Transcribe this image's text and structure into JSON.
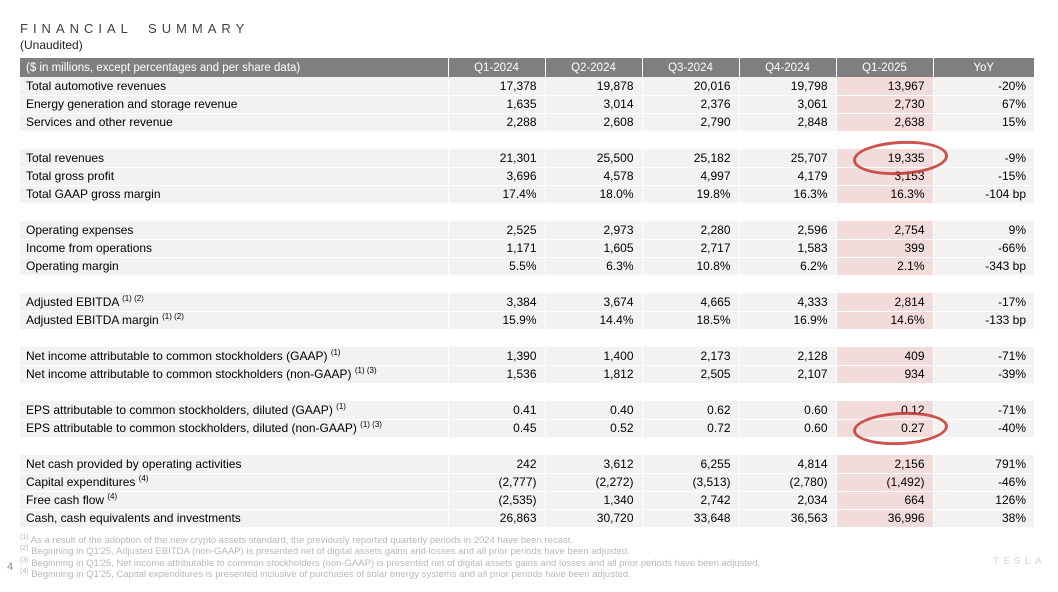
{
  "slide": {
    "title": "FINANCIAL SUMMARY",
    "subtitle": "(Unaudited)",
    "page_number": "4",
    "watermark": "TESLA"
  },
  "colors": {
    "header_gray": "#7f7f7f",
    "row_background": "#f2f2f2",
    "q1_2025_highlight_pink": "#f2dcdb",
    "annotation_red": "#c63b35",
    "footnote_gray": "#b9b9b9"
  },
  "table": {
    "header": {
      "label": "($ in millions, except percentages and per share data)",
      "columns": [
        "Q1-2024",
        "Q2-2024",
        "Q3-2024",
        "Q4-2024",
        "Q1-2025",
        "YoY"
      ]
    },
    "highlighted_column": "Q1-2025",
    "sections": [
      {
        "rows": [
          {
            "label": "Total automotive revenues",
            "sup": "",
            "values": [
              "17,378",
              "19,878",
              "20,016",
              "19,798",
              "13,967",
              "-20%"
            ]
          },
          {
            "label": "Energy generation and storage revenue",
            "sup": "",
            "values": [
              "1,635",
              "3,014",
              "2,376",
              "3,061",
              "2,730",
              "67%"
            ]
          },
          {
            "label": "Services and other revenue",
            "sup": "",
            "values": [
              "2,288",
              "2,608",
              "2,790",
              "2,848",
              "2,638",
              "15%"
            ]
          }
        ]
      },
      {
        "rows": [
          {
            "label": "Total revenues",
            "sup": "",
            "values": [
              "21,301",
              "25,500",
              "25,182",
              "25,707",
              "19,335",
              "-9%"
            ],
            "circled": 4
          },
          {
            "label": "Total gross profit",
            "sup": "",
            "values": [
              "3,696",
              "4,578",
              "4,997",
              "4,179",
              "3,153",
              "-15%"
            ]
          },
          {
            "label": "Total GAAP gross margin",
            "sup": "",
            "values": [
              "17.4%",
              "18.0%",
              "19.8%",
              "16.3%",
              "16.3%",
              "-104 bp"
            ]
          }
        ]
      },
      {
        "rows": [
          {
            "label": "Operating expenses",
            "sup": "",
            "values": [
              "2,525",
              "2,973",
              "2,280",
              "2,596",
              "2,754",
              "9%"
            ]
          },
          {
            "label": "Income from operations",
            "sup": "",
            "values": [
              "1,171",
              "1,605",
              "2,717",
              "1,583",
              "399",
              "-66%"
            ]
          },
          {
            "label": "Operating margin",
            "sup": "",
            "values": [
              "5.5%",
              "6.3%",
              "10.8%",
              "6.2%",
              "2.1%",
              "-343 bp"
            ]
          }
        ]
      },
      {
        "rows": [
          {
            "label": "Adjusted EBITDA",
            "sup": "(1) (2)",
            "values": [
              "3,384",
              "3,674",
              "4,665",
              "4,333",
              "2,814",
              "-17%"
            ]
          },
          {
            "label": "Adjusted EBITDA margin",
            "sup": "(1) (2)",
            "values": [
              "15.9%",
              "14.4%",
              "18.5%",
              "16.9%",
              "14.6%",
              "-133 bp"
            ]
          }
        ]
      },
      {
        "rows": [
          {
            "label": "Net income attributable to common stockholders (GAAP)",
            "sup": "(1)",
            "values": [
              "1,390",
              "1,400",
              "2,173",
              "2,128",
              "409",
              "-71%"
            ]
          },
          {
            "label": "Net income attributable to common stockholders (non-GAAP)",
            "sup": "(1) (3)",
            "values": [
              "1,536",
              "1,812",
              "2,505",
              "2,107",
              "934",
              "-39%"
            ]
          }
        ]
      },
      {
        "rows": [
          {
            "label": "EPS attributable to common stockholders, diluted (GAAP)",
            "sup": "(1)",
            "values": [
              "0.41",
              "0.40",
              "0.62",
              "0.60",
              "0.12",
              "-71%"
            ]
          },
          {
            "label": "EPS attributable to common stockholders, diluted (non-GAAP)",
            "sup": "(1) (3)",
            "values": [
              "0.45",
              "0.52",
              "0.72",
              "0.60",
              "0.27",
              "-40%"
            ],
            "circled": 4
          }
        ]
      },
      {
        "rows": [
          {
            "label": "Net cash provided by operating activities",
            "sup": "",
            "values": [
              "242",
              "3,612",
              "6,255",
              "4,814",
              "2,156",
              "791%"
            ]
          },
          {
            "label": "Capital expenditures",
            "sup": "(4)",
            "values": [
              "(2,777)",
              "(2,272)",
              "(3,513)",
              "(2,780)",
              "(1,492)",
              "-46%"
            ]
          },
          {
            "label": "Free cash flow",
            "sup": "(4)",
            "values": [
              "(2,535)",
              "1,340",
              "2,742",
              "2,034",
              "664",
              "126%"
            ]
          },
          {
            "label": "Cash, cash equivalents and investments",
            "sup": "",
            "values": [
              "26,863",
              "30,720",
              "33,648",
              "36,563",
              "36,996",
              "38%"
            ]
          }
        ]
      }
    ]
  },
  "footnotes": [
    {
      "sup": "(1)",
      "text": "As a result of the adoption of the new crypto assets standard, the previously reported quarterly periods in 2024 have been recast."
    },
    {
      "sup": "(2)",
      "text": "Beginning in Q1'25, Adjusted EBITDA (non-GAAP) is presented net of digital assets gains and losses and all prior periods have been adjusted."
    },
    {
      "sup": "(3)",
      "text": "Beginning in Q1'25, Net income attributable to common stockholders (non-GAAP) is presented net of digital assets gains and losses and all prior periods have been adjusted."
    },
    {
      "sup": "(4)",
      "text": "Beginning in Q1'25, Capital expenditures is presented inclusive of purchases of solar energy systems and all prior periods have been adjusted."
    }
  ]
}
